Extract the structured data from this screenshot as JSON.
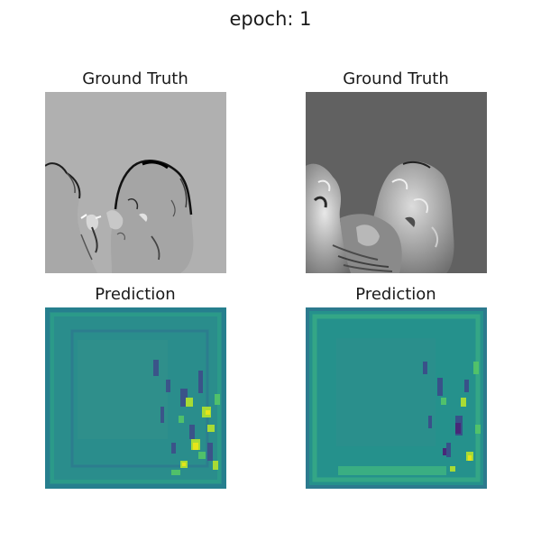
{
  "figure": {
    "suptitle": "epoch: 1",
    "panels": [
      {
        "title": "Ground Truth",
        "colormap": "gray",
        "background": "#b0b0b0"
      },
      {
        "title": "Ground Truth",
        "colormap": "gray",
        "background": "#616161"
      },
      {
        "title": "Prediction",
        "colormap": "viridis",
        "background": "#2a8d8c"
      },
      {
        "title": "Prediction",
        "colormap": "viridis",
        "background": "#25918c"
      }
    ]
  }
}
